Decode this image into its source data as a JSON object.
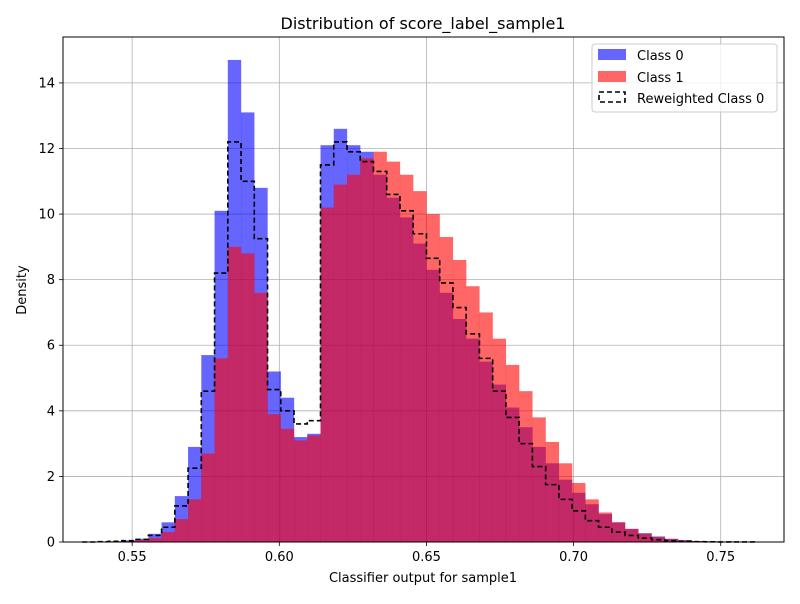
{
  "chart_data": {
    "type": "bar",
    "title": "Distribution of score_label_sample1",
    "xlabel": "Classifier output for sample1",
    "ylabel": "Density",
    "xlim": [
      0.5265,
      0.7715
    ],
    "ylim": [
      0,
      15.4
    ],
    "xticks": [
      0.55,
      0.6,
      0.65,
      0.7,
      0.75
    ],
    "xtick_labels": [
      "0.55",
      "0.60",
      "0.65",
      "0.70",
      "0.75"
    ],
    "yticks": [
      0,
      2,
      4,
      6,
      8,
      10,
      12,
      14
    ],
    "ytick_labels": [
      "0",
      "2",
      "4",
      "6",
      "8",
      "10",
      "12",
      "14"
    ],
    "grid": true,
    "legend_position": "top-right",
    "bin_edges_range": [
      0.533,
      0.7615
    ],
    "bin_width": 0.0045,
    "series": [
      {
        "name": "Class 0",
        "style": "filled",
        "color": "#0000ff",
        "opacity": 0.6,
        "values": [
          0,
          0.01,
          0.02,
          0.05,
          0.1,
          0.25,
          0.6,
          1.4,
          2.9,
          5.7,
          10.1,
          14.7,
          13.1,
          10.8,
          5.2,
          4.4,
          3.2,
          3.3,
          12.1,
          12.6,
          12.1,
          11.9,
          11.2,
          10.5,
          9.9,
          9.1,
          8.3,
          7.6,
          6.8,
          6.2,
          5.5,
          4.8,
          4.1,
          3.5,
          2.9,
          2.4,
          1.9,
          1.5,
          1.15,
          0.85,
          0.6,
          0.4,
          0.27,
          0.17,
          0.1,
          0.06,
          0.03,
          0.02,
          0.01,
          0.005,
          0.002
        ]
      },
      {
        "name": "Class 1",
        "style": "filled",
        "color": "#ff0000",
        "opacity": 0.6,
        "values": [
          0,
          0.01,
          0.02,
          0.03,
          0.06,
          0.12,
          0.3,
          0.7,
          1.3,
          2.7,
          5.6,
          9.0,
          8.8,
          7.6,
          3.9,
          3.45,
          3.1,
          3.25,
          10.2,
          10.9,
          11.2,
          11.7,
          11.9,
          11.6,
          11.2,
          10.7,
          10.0,
          9.3,
          8.6,
          7.8,
          7.0,
          6.2,
          5.4,
          4.6,
          3.8,
          3.05,
          2.4,
          1.8,
          1.3,
          0.9,
          0.6,
          0.4,
          0.25,
          0.15,
          0.09,
          0.05,
          0.03,
          0.02,
          0.01,
          0.005,
          0.002
        ]
      },
      {
        "name": "Reweighted Class 0",
        "style": "step",
        "color": "#000000",
        "linestyle": "dashed",
        "values": [
          0,
          0.01,
          0.02,
          0.04,
          0.08,
          0.2,
          0.45,
          1.1,
          2.25,
          4.6,
          8.2,
          12.2,
          11.0,
          9.25,
          4.65,
          4.0,
          3.6,
          3.7,
          11.5,
          12.2,
          11.9,
          11.6,
          11.3,
          10.6,
          10.1,
          9.4,
          8.65,
          7.9,
          7.15,
          6.35,
          5.6,
          4.6,
          3.8,
          3.0,
          2.3,
          1.75,
          1.3,
          0.95,
          0.65,
          0.45,
          0.3,
          0.2,
          0.12,
          0.07,
          0.04,
          0.02,
          0.01,
          0.005,
          0.002,
          0.001,
          0.0005
        ]
      }
    ]
  }
}
